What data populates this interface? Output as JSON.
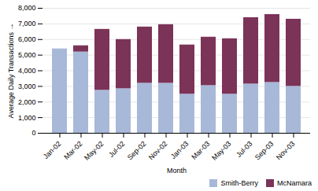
{
  "chart_data": {
    "type": "bar",
    "stacked": true,
    "xlabel": "Month",
    "ylabel": "Average Daily Transactions",
    "categories": [
      "Jan-02",
      "Mar-02",
      "May-02",
      "Jul-02",
      "Sep-02",
      "Nov-02",
      "Jan-03",
      "Mar-03",
      "May-03",
      "Jul-03",
      "Sep-03",
      "Nov-03"
    ],
    "series": [
      {
        "name": "Smith-Berry",
        "color": "#a8b8d8",
        "values": [
          5400,
          5200,
          2750,
          2850,
          3200,
          3200,
          2500,
          3050,
          2500,
          3150,
          3250,
          3000
        ]
      },
      {
        "name": "McNamara",
        "color": "#7b3358",
        "values": [
          0,
          400,
          3900,
          3150,
          3600,
          3750,
          3150,
          3100,
          3550,
          4250,
          4350,
          4300
        ]
      }
    ],
    "ylim": [
      0,
      8000
    ],
    "yticks": [
      0,
      {
        "value": 1000,
        "label": "1,000"
      },
      {
        "value": 2000,
        "label": "2,000"
      },
      {
        "value": 3000,
        "label": "3,000"
      },
      {
        "value": 4000,
        "label": "4,000"
      },
      {
        "value": 5000,
        "label": "5,000"
      },
      {
        "value": 6000,
        "label": "6,000"
      },
      {
        "value": 7000,
        "label": "7,000"
      },
      {
        "value": 8000,
        "label": "8,000"
      }
    ],
    "grid": true,
    "legend": "lower right"
  }
}
